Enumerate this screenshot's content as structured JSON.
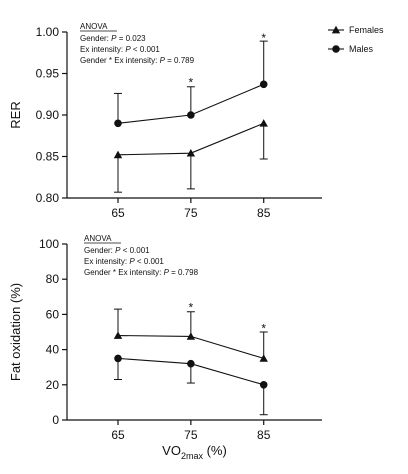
{
  "legend": [
    {
      "name": "Females",
      "marker": "triangle"
    },
    {
      "name": "Males",
      "marker": "circle"
    }
  ],
  "chart_data": [
    {
      "type": "line",
      "ylabel": "RER",
      "xlabel": "",
      "x": [
        65,
        75,
        85
      ],
      "x_tick_labels": [
        "65",
        "75",
        "85"
      ],
      "xlim": [
        58,
        93
      ],
      "ylim": [
        0.8,
        1.0
      ],
      "yticks": [
        0.8,
        0.85,
        0.9,
        0.95,
        1.0
      ],
      "y_tick_labels": [
        "0.80",
        "0.85",
        "0.90",
        "0.95",
        "1.00"
      ],
      "series": [
        {
          "name": "Females",
          "marker": "triangle",
          "values": [
            0.852,
            0.854,
            0.89
          ],
          "error_down": [
            0.045,
            0.043,
            0.043
          ]
        },
        {
          "name": "Males",
          "marker": "circle",
          "values": [
            0.89,
            0.9,
            0.937
          ],
          "error_up": [
            0.036,
            0.034,
            0.052
          ]
        }
      ],
      "significance": [
        {
          "x": 75,
          "y": 0.939,
          "label": "*"
        },
        {
          "x": 85,
          "y": 0.993,
          "label": "*"
        }
      ],
      "annotation": {
        "title": "ANOVA",
        "lines": [
          {
            "prefix": "Gender: ",
            "italic": "P",
            "suffix": " = 0.023"
          },
          {
            "prefix": "Ex intensity: ",
            "italic": "P",
            "suffix": " < 0.001"
          },
          {
            "prefix": "Gender * Ex intensity: ",
            "italic": "P",
            "suffix": " = 0.789"
          }
        ]
      }
    },
    {
      "type": "line",
      "ylabel": "Fat oxidation (%)",
      "xlabel": {
        "base": "VO",
        "sub": "2max",
        "suffix": " (%)"
      },
      "x": [
        65,
        75,
        85
      ],
      "x_tick_labels": [
        "65",
        "75",
        "85"
      ],
      "xlim": [
        58,
        93
      ],
      "ylim": [
        0,
        100
      ],
      "yticks": [
        0,
        20,
        40,
        60,
        80,
        100
      ],
      "y_tick_labels": [
        "0",
        "20",
        "40",
        "60",
        "80",
        "100"
      ],
      "series": [
        {
          "name": "Females",
          "marker": "triangle",
          "values": [
            48,
            47.5,
            35
          ],
          "error_up": [
            15,
            14,
            15
          ]
        },
        {
          "name": "Males",
          "marker": "circle",
          "values": [
            35,
            32,
            20
          ],
          "error_down": [
            12,
            11,
            17
          ]
        }
      ],
      "significance": [
        {
          "x": 75,
          "y": 64,
          "label": "*"
        },
        {
          "x": 85,
          "y": 52,
          "label": "*"
        }
      ],
      "annotation": {
        "title": "ANOVA",
        "lines": [
          {
            "prefix": "Gender: ",
            "italic": "P",
            "suffix": " < 0.001"
          },
          {
            "prefix": "Ex intensity: ",
            "italic": "P",
            "suffix": " < 0.001"
          },
          {
            "prefix": "Gender * Ex intensity: ",
            "italic": "P",
            "suffix": " = 0.798"
          }
        ]
      }
    }
  ]
}
